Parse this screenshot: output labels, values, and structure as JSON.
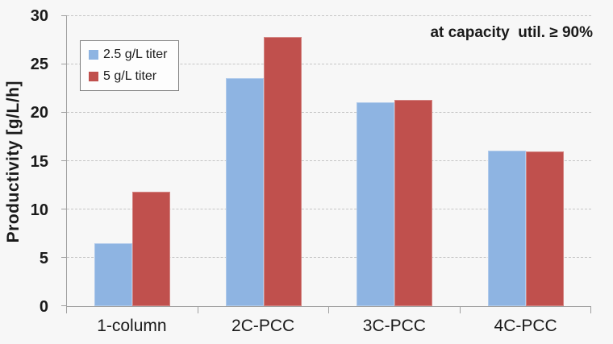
{
  "chart_data": {
    "type": "bar",
    "categories": [
      "1-column",
      "2C-PCC",
      "3C-PCC",
      "4C-PCC"
    ],
    "series": [
      {
        "name": "2.5 g/L titer",
        "color": "#8EB4E2",
        "values": [
          6.5,
          23.6,
          21.1,
          16.1
        ]
      },
      {
        "name": "5 g/L titer",
        "color": "#C0504D",
        "values": [
          11.8,
          27.8,
          21.3,
          16.0
        ]
      }
    ],
    "xlabel": "",
    "ylabel": "Productivity [g/L/h]",
    "ylim": [
      0,
      30
    ],
    "yticks": [
      0,
      5,
      10,
      15,
      20,
      25,
      30
    ],
    "grid": "horizontal-dashed",
    "legend_position": "upper-left-inside",
    "annotation": "at capacity  util. ≥ 90%"
  },
  "colors": {
    "background": "#F7F7F7",
    "axis": "#A0A0A0",
    "gridline": "#C6C6C6",
    "text": "#1A1A1A",
    "legend_border": "#7F7F7F",
    "legend_background": "#FDFDFD"
  }
}
